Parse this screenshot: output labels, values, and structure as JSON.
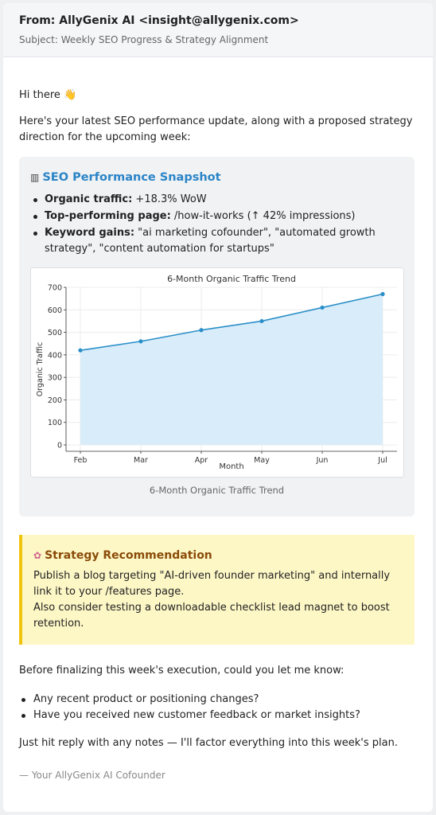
{
  "header": {
    "from": "From: AllyGenix AI <insight@allygenix.com>",
    "subject": "Subject: Weekly SEO Progress & Strategy Alignment"
  },
  "greeting": "Hi there 👋",
  "intro": "Here's your latest SEO performance update, along with a proposed strategy direction for the upcoming week:",
  "snapshot": {
    "icon": "bar-chart-icon",
    "title": "SEO Performance Snapshot",
    "items": [
      {
        "label": "Organic traffic:",
        "value": " +18.3% WoW"
      },
      {
        "label": "Top-performing page:",
        "value": " /how-it-works (↑ 42% impressions)"
      },
      {
        "label": "Keyword gains:",
        "value": " \"ai marketing cofounder\", \"automated growth strategy\", \"content automation for startups\""
      }
    ],
    "caption": "6-Month Organic Traffic Trend"
  },
  "chart_data": {
    "type": "area",
    "title": "6-Month Organic Traffic Trend",
    "xlabel": "Month",
    "ylabel": "Organic Traffic",
    "categories": [
      "Feb",
      "Mar",
      "Apr",
      "May",
      "Jun",
      "Jul"
    ],
    "values": [
      420,
      460,
      510,
      550,
      610,
      670
    ],
    "ylim": [
      0,
      700
    ],
    "yticks": [
      0,
      100,
      200,
      300,
      400,
      500,
      600,
      700
    ],
    "grid": true,
    "colors": {
      "line": "#2a8fc8",
      "fill": "#d9ecfa"
    }
  },
  "strategy": {
    "icon": "brain-icon",
    "title": "Strategy Recommendation",
    "line1": "Publish a blog targeting \"AI-driven founder marketing\" and internally link it to your /features page.",
    "line2": "Also consider testing a downloadable checklist lead magnet to boost retention."
  },
  "questions": {
    "intro": "Before finalizing this week's execution, could you let me know:",
    "items": [
      "Any recent product or positioning changes?",
      "Have you received new customer feedback or market insights?"
    ]
  },
  "reply_note": "Just hit reply with any notes — I'll factor everything into this week's plan.",
  "signature": "— Your AllyGenix AI Cofounder"
}
